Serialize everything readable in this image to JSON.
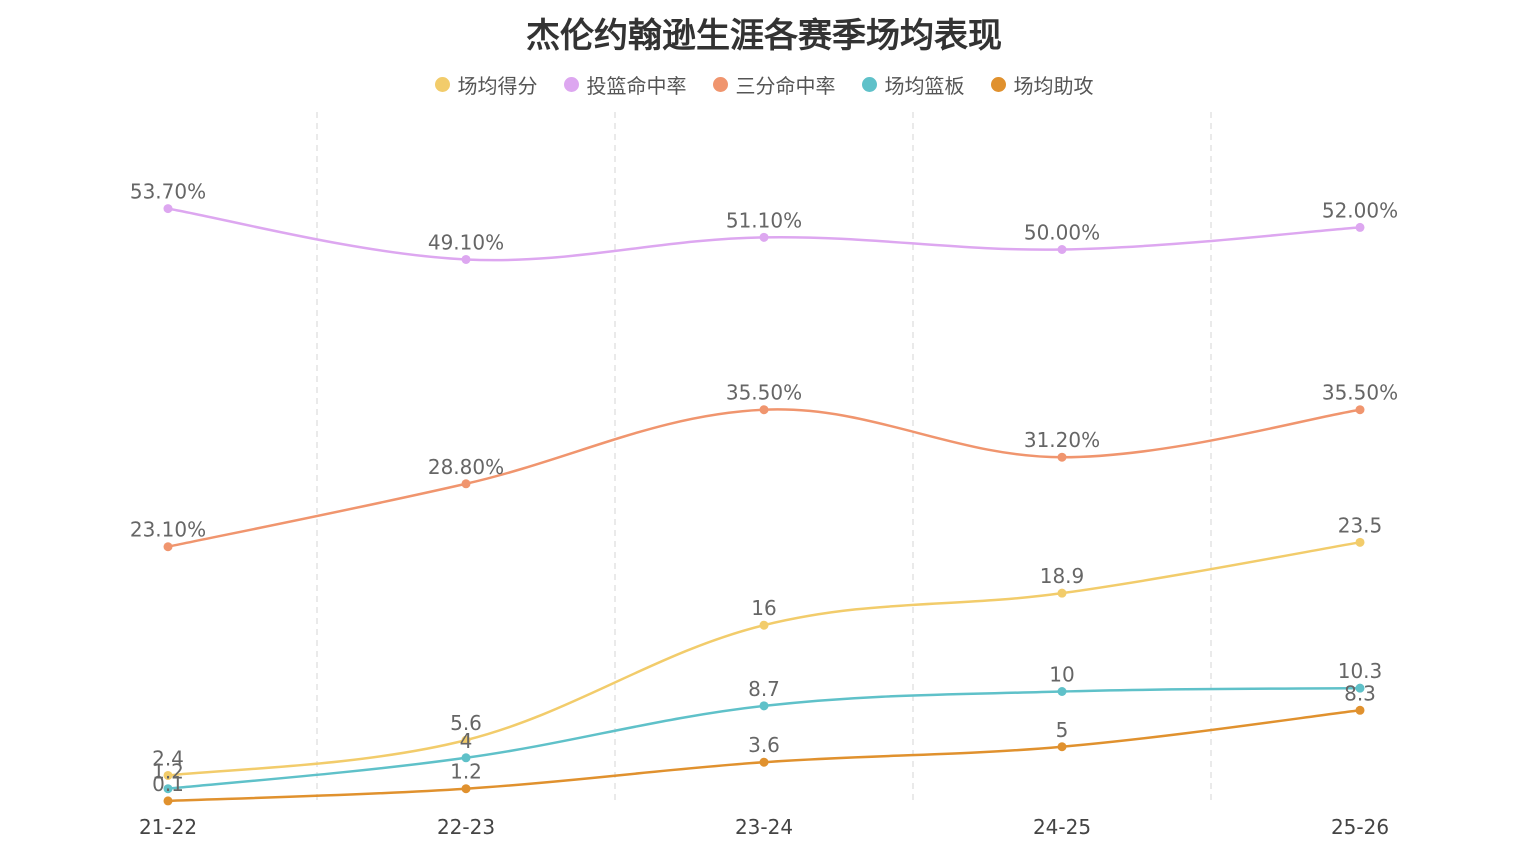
{
  "chart_data": {
    "type": "line",
    "title": "杰伦约翰逊生涯各赛季场均表现",
    "categories": [
      "21-22",
      "22-23",
      "23-24",
      "24-25",
      "25-26"
    ],
    "xlabel": "",
    "ylabel": "",
    "grid": "vertical-dashed",
    "legend_position": "top-center",
    "series": [
      {
        "name": "场均得分",
        "color": "#F2CC6B",
        "values": [
          2.4,
          5.6,
          16,
          18.9,
          23.5
        ],
        "labels": [
          "2.4",
          "5.6",
          "16",
          "18.9",
          "23.5"
        ]
      },
      {
        "name": "投篮命中率",
        "color": "#DDA7F0",
        "values": [
          53.7,
          49.1,
          51.1,
          50.0,
          52.0
        ],
        "labels": [
          "53.70%",
          "49.10%",
          "51.10%",
          "50.00%",
          "52.00%"
        ]
      },
      {
        "name": "三分命中率",
        "color": "#F0956E",
        "values": [
          23.1,
          28.8,
          35.5,
          31.2,
          35.5
        ],
        "labels": [
          "23.10%",
          "28.80%",
          "35.50%",
          "31.20%",
          "35.50%"
        ]
      },
      {
        "name": "场均篮板",
        "color": "#5FC1C9",
        "values": [
          1.2,
          4,
          8.7,
          10,
          10.3
        ],
        "labels": [
          "1.2",
          "4",
          "8.7",
          "10",
          "10.3"
        ]
      },
      {
        "name": "场均助攻",
        "color": "#E0912E",
        "values": [
          0.1,
          1.2,
          3.6,
          5,
          8.3
        ],
        "labels": [
          "0.1",
          "1.2",
          "3.6",
          "5",
          "8.3"
        ]
      }
    ]
  }
}
